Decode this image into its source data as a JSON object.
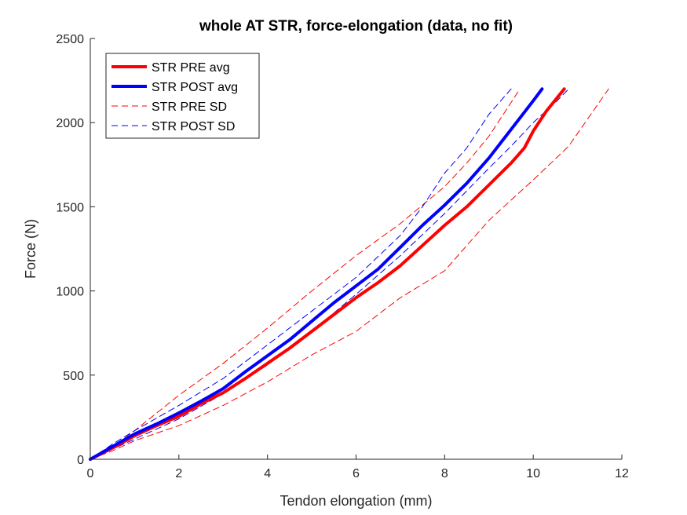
{
  "chart_data": {
    "type": "line",
    "title": "whole AT STR, force-elongation (data, no fit)",
    "xlabel": "Tendon elongation (mm)",
    "ylabel": "Force (N)",
    "xlim": [
      0,
      12
    ],
    "ylim": [
      0,
      2500
    ],
    "xticks": [
      0,
      2,
      4,
      6,
      8,
      10,
      12
    ],
    "yticks": [
      0,
      500,
      1000,
      1500,
      2000,
      2500
    ],
    "grid": false,
    "legend_position": "top-left",
    "series": [
      {
        "name": "STR PRE avg",
        "color": "#ff0000",
        "style": "solid",
        "width": 4,
        "x": [
          0,
          0.3,
          0.6,
          1.0,
          1.5,
          2.0,
          2.5,
          3.0,
          3.5,
          4.0,
          4.5,
          5.0,
          5.5,
          6.0,
          6.5,
          7.0,
          7.5,
          8.0,
          8.5,
          9.0,
          9.5,
          9.8,
          10.0,
          10.3,
          10.7
        ],
        "y": [
          0,
          40,
          80,
          140,
          200,
          255,
          330,
          395,
          480,
          570,
          660,
          760,
          860,
          960,
          1050,
          1150,
          1270,
          1390,
          1500,
          1630,
          1760,
          1850,
          1950,
          2070,
          2200
        ]
      },
      {
        "name": "STR POST avg",
        "color": "#0000ff",
        "style": "solid",
        "width": 4,
        "x": [
          0,
          0.3,
          0.6,
          1.0,
          1.5,
          2.0,
          2.5,
          3.0,
          3.5,
          4.0,
          4.5,
          5.0,
          5.5,
          6.0,
          6.5,
          7.0,
          7.5,
          8.0,
          8.5,
          9.0,
          9.5,
          10.0,
          10.2
        ],
        "y": [
          0,
          45,
          90,
          150,
          210,
          275,
          345,
          420,
          520,
          615,
          710,
          820,
          930,
          1030,
          1130,
          1260,
          1390,
          1510,
          1640,
          1790,
          1960,
          2130,
          2200
        ]
      },
      {
        "name": "STR PRE SD",
        "color": "#ff0000",
        "style": "dashed",
        "width": 1,
        "x": [
          0,
          0.5,
          1.0,
          2.0,
          3.0,
          4.0,
          5.0,
          6.0,
          7.0,
          8.0,
          8.5,
          9.0,
          9.5,
          9.7
        ],
        "y": [
          0,
          70,
          170,
          380,
          570,
          780,
          1000,
          1210,
          1400,
          1620,
          1760,
          1920,
          2120,
          2200
        ]
      },
      {
        "name": "",
        "color": "#ff0000",
        "style": "dashed",
        "width": 1,
        "x": [
          0,
          0.5,
          1.0,
          2.0,
          3.0,
          4.0,
          5.0,
          6.0,
          7.0,
          8.0,
          9.0,
          10.0,
          10.8,
          11.7
        ],
        "y": [
          0,
          50,
          110,
          200,
          320,
          460,
          620,
          760,
          960,
          1120,
          1420,
          1660,
          1860,
          2200
        ]
      },
      {
        "name": "STR POST SD",
        "color": "#0000ff",
        "style": "dashed",
        "width": 1,
        "x": [
          0,
          0.5,
          1.0,
          2.0,
          3.0,
          4.0,
          5.0,
          6.0,
          7.0,
          7.5,
          8.0,
          8.5,
          9.0,
          9.5
        ],
        "y": [
          0,
          90,
          170,
          320,
          480,
          680,
          880,
          1080,
          1330,
          1500,
          1700,
          1850,
          2050,
          2200
        ]
      },
      {
        "name": "",
        "color": "#0000ff",
        "style": "dashed",
        "width": 1,
        "x": [
          0,
          0.5,
          1.0,
          2.0,
          3.0,
          4.0,
          5.0,
          6.0,
          7.0,
          8.0,
          9.0,
          9.5,
          10.0,
          10.5,
          10.8
        ],
        "y": [
          0,
          60,
          120,
          240,
          390,
          560,
          760,
          980,
          1210,
          1460,
          1730,
          1860,
          2000,
          2120,
          2200
        ]
      }
    ]
  }
}
